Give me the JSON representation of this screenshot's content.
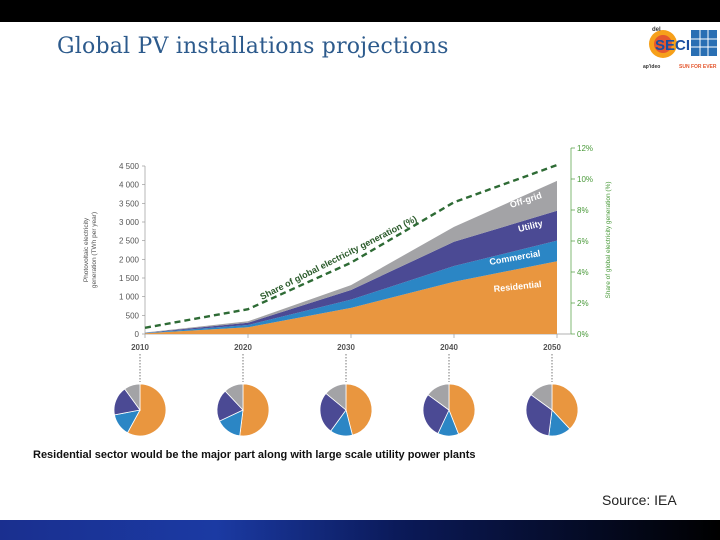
{
  "slide": {
    "title": "Global PV installations projections",
    "caption": "Residential sector would be the major part along with large scale utility  power plants",
    "source": "Source: IEA",
    "logo": {
      "top_text": "del",
      "main_text": "SECI",
      "sub_left": "ap'ideo",
      "sub_right": "SUN FOR EVER"
    }
  },
  "colors": {
    "residential": "#e9963f",
    "commercial": "#2b86c5",
    "utility": "#4b4a94",
    "offgrid": "#a3a3a6",
    "share_line": "#2e6b35",
    "title": "#2c5a8c"
  },
  "chart_data": {
    "type": "area",
    "title": "",
    "x": [
      2010,
      2020,
      2030,
      2040,
      2050
    ],
    "x_ticks": [
      "2010",
      "2020",
      "2030",
      "2040",
      "2050"
    ],
    "ylabel": "Photovoltaic electricity generation (TWh per year)",
    "ylim": [
      0,
      4500
    ],
    "y_ticks": [
      "0",
      "500",
      "1 000",
      "1 500",
      "2 000",
      "2 500",
      "3 000",
      "3 500",
      "4 000",
      "4 500"
    ],
    "y2label": "Share of global electricity generation (%)",
    "y2lim": [
      0,
      12
    ],
    "y2_ticks": [
      "0%",
      "2%",
      "4%",
      "6%",
      "8%",
      "10%",
      "12%"
    ],
    "series": [
      {
        "name": "Residential",
        "values": [
          20,
          180,
          700,
          1400,
          1950
        ]
      },
      {
        "name": "Commercial",
        "values": [
          10,
          60,
          220,
          420,
          550
        ]
      },
      {
        "name": "Utility",
        "values": [
          5,
          60,
          260,
          650,
          800
        ]
      },
      {
        "name": "Off-grid",
        "values": [
          5,
          40,
          130,
          400,
          800
        ]
      }
    ],
    "share_line": {
      "name": "Share of global electricity generation (%)",
      "values": [
        0.4,
        1.6,
        4.6,
        8.5,
        10.9
      ]
    },
    "pies": [
      {
        "year": "2010",
        "slices": [
          {
            "name": "Residential",
            "value": 58
          },
          {
            "name": "Commercial",
            "value": 14
          },
          {
            "name": "Utility",
            "value": 18
          },
          {
            "name": "Off-grid",
            "value": 10
          }
        ]
      },
      {
        "year": "2020",
        "slices": [
          {
            "name": "Residential",
            "value": 52
          },
          {
            "name": "Commercial",
            "value": 16
          },
          {
            "name": "Utility",
            "value": 20
          },
          {
            "name": "Off-grid",
            "value": 12
          }
        ]
      },
      {
        "year": "2030",
        "slices": [
          {
            "name": "Residential",
            "value": 46
          },
          {
            "name": "Commercial",
            "value": 14
          },
          {
            "name": "Utility",
            "value": 26
          },
          {
            "name": "Off-grid",
            "value": 14
          }
        ]
      },
      {
        "year": "2040",
        "slices": [
          {
            "name": "Residential",
            "value": 44
          },
          {
            "name": "Commercial",
            "value": 13
          },
          {
            "name": "Utility",
            "value": 28
          },
          {
            "name": "Off-grid",
            "value": 15
          }
        ]
      },
      {
        "year": "2050",
        "slices": [
          {
            "name": "Residential",
            "value": 38
          },
          {
            "name": "Commercial",
            "value": 14
          },
          {
            "name": "Utility",
            "value": 33
          },
          {
            "name": "Off-grid",
            "value": 15
          }
        ]
      }
    ]
  }
}
